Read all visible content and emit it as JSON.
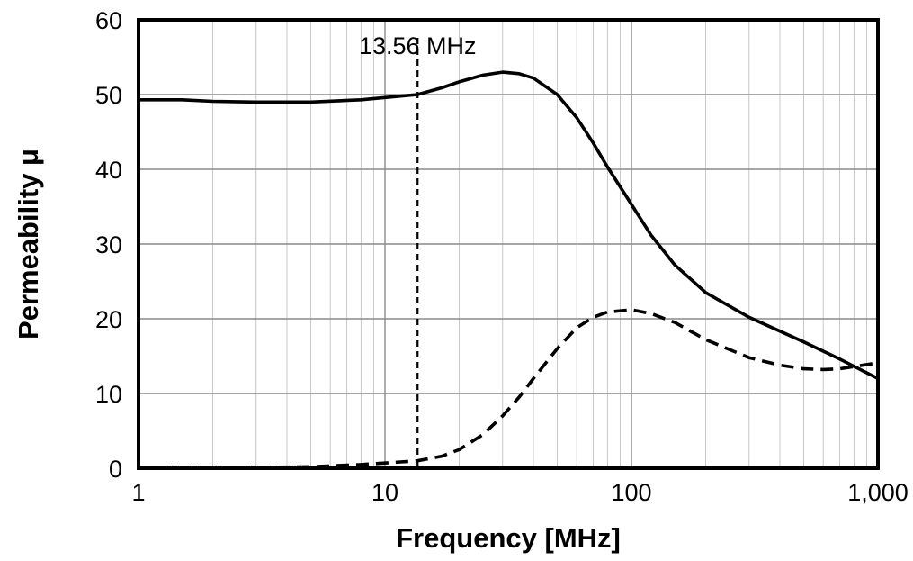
{
  "chart_data": {
    "type": "line",
    "xlabel": "Frequency [MHz]",
    "ylabel": "Permeability μ",
    "xscale": "log",
    "xlim": [
      1,
      1000
    ],
    "ylim": [
      0,
      60
    ],
    "x_ticks": [
      {
        "value": 1,
        "label": "1"
      },
      {
        "value": 10,
        "label": "10"
      },
      {
        "value": 100,
        "label": "100"
      },
      {
        "value": 1000,
        "label": "1,000"
      }
    ],
    "y_ticks": [
      {
        "value": 0,
        "label": "0"
      },
      {
        "value": 10,
        "label": "10"
      },
      {
        "value": 20,
        "label": "20"
      },
      {
        "value": 30,
        "label": "30"
      },
      {
        "value": 40,
        "label": "40"
      },
      {
        "value": 50,
        "label": "50"
      },
      {
        "value": 60,
        "label": "60"
      }
    ],
    "grid": true,
    "annotation": {
      "x": 13.56,
      "text": "13.56 MHz",
      "style": "dashed vertical line"
    },
    "series": [
      {
        "style": "solid",
        "x": [
          1,
          1.5,
          2,
          3,
          5,
          8,
          10,
          13.56,
          17,
          20,
          25,
          30,
          35,
          40,
          50,
          60,
          70,
          80,
          100,
          120,
          150,
          200,
          300,
          500,
          700,
          1000
        ],
        "y": [
          49.3,
          49.3,
          49.1,
          49.0,
          49.0,
          49.3,
          49.6,
          50.0,
          50.9,
          51.7,
          52.6,
          53.0,
          52.8,
          52.2,
          50.0,
          46.9,
          43.5,
          40.3,
          35.3,
          31.2,
          27.2,
          23.5,
          20.2,
          16.9,
          14.6,
          12.0
        ]
      },
      {
        "style": "dashed",
        "x": [
          1,
          3,
          5,
          8,
          10,
          13.56,
          17,
          20,
          25,
          30,
          35,
          40,
          50,
          60,
          70,
          80,
          100,
          120,
          150,
          200,
          300,
          400,
          500,
          600,
          700,
          800,
          1000
        ],
        "y": [
          0.1,
          0.1,
          0.2,
          0.5,
          0.7,
          1.0,
          1.6,
          2.5,
          4.5,
          7.0,
          9.5,
          12.0,
          16.0,
          18.8,
          20.2,
          20.9,
          21.2,
          20.7,
          19.5,
          17.2,
          14.8,
          13.8,
          13.3,
          13.2,
          13.3,
          13.6,
          14.1
        ]
      }
    ]
  }
}
